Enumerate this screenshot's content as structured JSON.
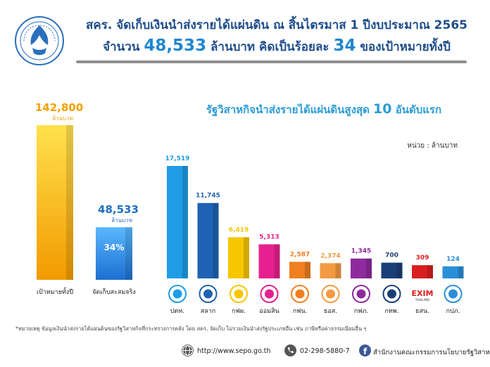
{
  "header": {
    "title_line1": "สคร. จัดเก็บเงินนำส่งรายได้แผ่นดิน ณ สิ้นไตรมาส 1 ปีงบประมาณ 2565",
    "title_line2_pre": "จำนวน",
    "title_line2_amount": "48,533",
    "title_line2_mid": "ล้านบาท คิดเป็นร้อยละ",
    "title_line2_percent": "34",
    "title_line2_post": "ของเป้าหมายทั้งปี"
  },
  "right_title_pre": "รัฐวิสาหกิจนำส่งรายได้แผ่นดินสูงสุด",
  "right_title_num": "10",
  "right_title_post": "อันดับแรก",
  "unit_label": "หน่วย : ล้านบาท",
  "colors": {
    "title": "#1f4e8c",
    "accent": "#2b9bd6",
    "target_bar": "#f5b21a",
    "collected_bar": "#2b8fe0"
  },
  "chart_data": [
    {
      "type": "bar",
      "categories": [
        "เป้าหมายทั้งปี",
        "จัดเก็บสะสมจริง"
      ],
      "values": [
        142800,
        48533
      ],
      "value_labels": [
        "142,800",
        "48,533"
      ],
      "unit": "ล้านบาท",
      "percent_label": "34%",
      "label_colors": [
        "#f5a100",
        "#1f6fc0"
      ],
      "colors": [
        "#f5b21a",
        "#2b8fe0"
      ]
    },
    {
      "type": "bar",
      "title": "รัฐวิสาหกิจนำส่งรายได้แผ่นดินสูงสุด 10 อันดับแรก",
      "categories": [
        "ปตท.",
        "สลาก",
        "กฟผ.",
        "ออมสิน",
        "กฟน.",
        "ธอส.",
        "กฟภ.",
        "กทพ.",
        "ธสน.",
        "กปภ."
      ],
      "values": [
        17519,
        11745,
        6419,
        5313,
        2587,
        2374,
        1345,
        700,
        309,
        124
      ],
      "value_labels": [
        "17,519",
        "11,745",
        "6,419",
        "5,313",
        "2,587",
        "2,374",
        "1,345",
        "700",
        "309",
        "124"
      ],
      "colors": [
        "#1e9de6",
        "#1f62b3",
        "#f7c600",
        "#e6218f",
        "#f17f1f",
        "#f39a42",
        "#8e2a9e",
        "#1a3f78",
        "#d81e1e",
        "#2b8fd8"
      ],
      "icon_names": [
        "ptt-logo-icon",
        "lottery-logo-icon",
        "egat-logo-icon",
        "gsb-logo-icon",
        "mea-logo-icon",
        "ghb-logo-icon",
        "pea-logo-icon",
        "exat-logo-icon",
        "exim-logo-icon",
        "pwa-logo-icon"
      ],
      "exim_logo_text": "EXIM",
      "exim_logo_sub": "THAILAND"
    }
  ],
  "footnote": "*หมายเหตุ ข้อมูลเงินนำส่งรายได้แผ่นดินของรัฐวิสาหกิจที่กระทรวงการคลัง โดย สคร. จัดเก็บ ไม่รวมเงินนำส่งรัฐประเภทอื่น เช่น ภาษีหรือค่าธรรมเนียมอื่น ๆ",
  "footer": {
    "website": "http://www.sepo.go.th",
    "phone": "02-298-5880-7",
    "organization": "สำนักงานคณะกรรมการนโยบายรัฐวิสาหกิจ"
  }
}
